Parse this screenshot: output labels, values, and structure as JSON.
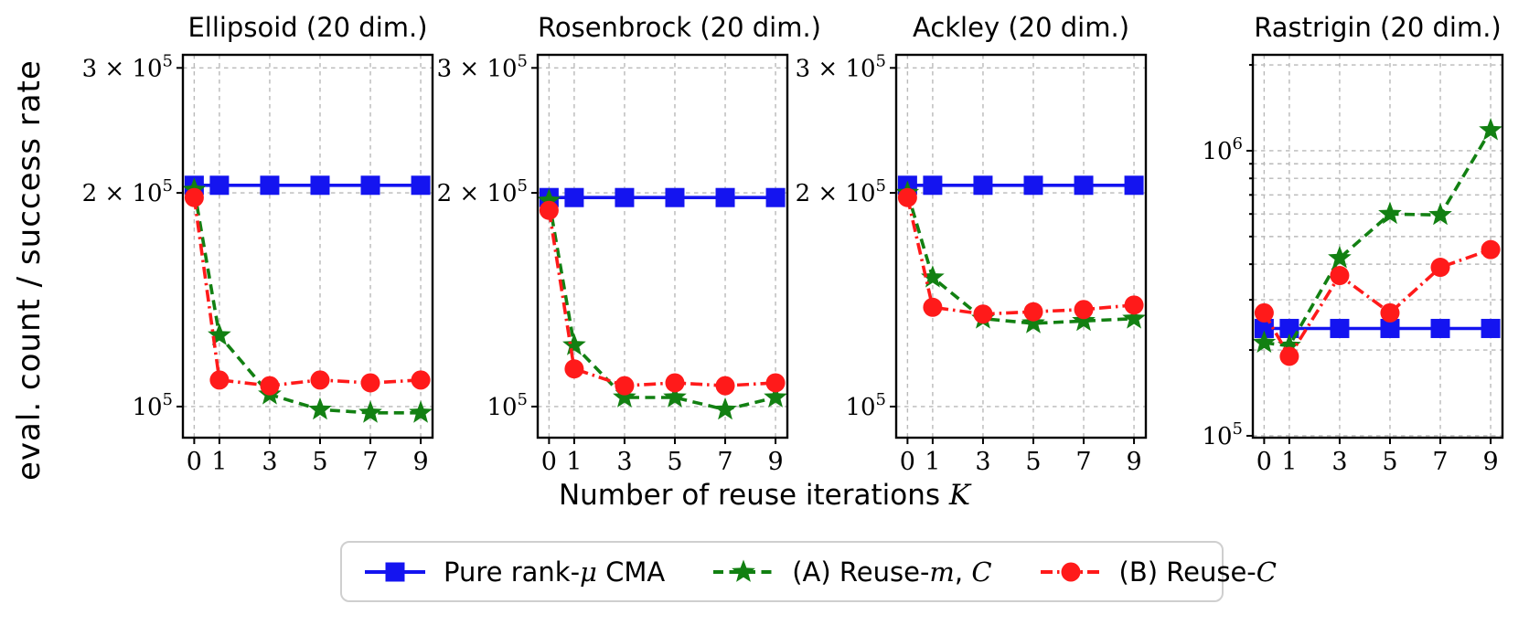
{
  "figure": {
    "ylabel": "eval. count / success rate",
    "xlabel_parts": [
      {
        "text": "Number of reuse iterations ",
        "italic": false
      },
      {
        "text": "K",
        "italic": true
      }
    ],
    "colors": {
      "blue": "#1414f0",
      "green": "#128012",
      "red": "#ff1a1a",
      "grid": "#b9b9b9",
      "axis": "#000000"
    }
  },
  "legend": {
    "items": [
      {
        "id": "pure-rank-mu-cma",
        "color": "blue",
        "line": "solid",
        "marker": "square",
        "parts": [
          {
            "text": "Pure rank-",
            "italic": false
          },
          {
            "text": "μ",
            "italic": true
          },
          {
            "text": " CMA",
            "italic": false
          }
        ]
      },
      {
        "id": "reuse-m-c",
        "color": "green",
        "line": "dashed",
        "marker": "star",
        "parts": [
          {
            "text": "(A) Reuse-",
            "italic": false
          },
          {
            "text": "m",
            "italic": true
          },
          {
            "text": ", ",
            "italic": false
          },
          {
            "text": "C",
            "italic": true
          }
        ]
      },
      {
        "id": "reuse-c",
        "color": "red",
        "line": "dashdot",
        "marker": "circle",
        "parts": [
          {
            "text": "(B) Reuse-",
            "italic": false
          },
          {
            "text": "C",
            "italic": true
          }
        ]
      }
    ]
  },
  "chart_data": [
    {
      "type": "line",
      "title": "Ellipsoid (20 dim.)",
      "x": [
        0,
        1,
        3,
        5,
        7,
        9
      ],
      "xticks": [
        0,
        1,
        3,
        5,
        7,
        9
      ],
      "xlim": [
        -0.45,
        9.47
      ],
      "ylog": true,
      "ylim": [
        90400,
        313000
      ],
      "yticks": [
        {
          "v": 100000,
          "label": "10^5"
        },
        {
          "v": 200000,
          "label": "2 × 10^5"
        },
        {
          "v": 300000,
          "label": "3 × 10^5"
        }
      ],
      "yticks_minor": [],
      "grid": true,
      "series": [
        {
          "name": "Pure rank-μ CMA",
          "color": "blue",
          "line": "solid",
          "marker": "square",
          "values": [
            205000,
            205000,
            205000,
            205000,
            205000,
            205000
          ]
        },
        {
          "name": "(A) Reuse-m,C",
          "color": "green",
          "line": "dashed",
          "marker": "star",
          "values": [
            202000,
            126000,
            104000,
            99000,
            98000,
            98000
          ]
        },
        {
          "name": "(B) Reuse-C",
          "color": "red",
          "line": "dashdot",
          "marker": "circle",
          "values": [
            197000,
            109000,
            107000,
            109000,
            108000,
            109000
          ]
        }
      ]
    },
    {
      "type": "line",
      "title": "Rosenbrock (20 dim.)",
      "x": [
        0,
        1,
        3,
        5,
        7,
        9
      ],
      "xticks": [
        0,
        1,
        3,
        5,
        7,
        9
      ],
      "xlim": [
        -0.45,
        9.47
      ],
      "ylog": true,
      "ylim": [
        90400,
        313000
      ],
      "yticks": [
        {
          "v": 100000,
          "label": "10^5"
        },
        {
          "v": 200000,
          "label": "2 × 10^5"
        },
        {
          "v": 300000,
          "label": "3 × 10^5"
        }
      ],
      "yticks_minor": [],
      "grid": true,
      "series": [
        {
          "name": "Pure rank-μ CMA",
          "color": "blue",
          "line": "solid",
          "marker": "square",
          "values": [
            197000,
            197000,
            197000,
            197000,
            197000,
            197000
          ]
        },
        {
          "name": "(A) Reuse-m,C",
          "color": "green",
          "line": "dashed",
          "marker": "star",
          "values": [
            195000,
            122000,
            103000,
            103000,
            99000,
            103000
          ]
        },
        {
          "name": "(B) Reuse-C",
          "color": "red",
          "line": "dashdot",
          "marker": "circle",
          "values": [
            189000,
            113000,
            107000,
            108000,
            107000,
            108000
          ]
        }
      ]
    },
    {
      "type": "line",
      "title": "Ackley (20 dim.)",
      "x": [
        0,
        1,
        3,
        5,
        7,
        9
      ],
      "xticks": [
        0,
        1,
        3,
        5,
        7,
        9
      ],
      "xlim": [
        -0.45,
        9.47
      ],
      "ylog": true,
      "ylim": [
        90400,
        313000
      ],
      "yticks": [
        {
          "v": 100000,
          "label": "10^5"
        },
        {
          "v": 200000,
          "label": "2 × 10^5"
        },
        {
          "v": 300000,
          "label": "3 × 10^5"
        }
      ],
      "yticks_minor": [],
      "grid": true,
      "series": [
        {
          "name": "Pure rank-μ CMA",
          "color": "blue",
          "line": "solid",
          "marker": "square",
          "values": [
            205000,
            205000,
            205000,
            205000,
            205000,
            205000
          ]
        },
        {
          "name": "(A) Reuse-m,C",
          "color": "green",
          "line": "dashed",
          "marker": "star",
          "values": [
            200000,
            152000,
            133000,
            131000,
            132000,
            133000
          ]
        },
        {
          "name": "(B) Reuse-C",
          "color": "red",
          "line": "dashdot",
          "marker": "circle",
          "values": [
            197000,
            138000,
            135000,
            136000,
            137000,
            139000
          ]
        }
      ]
    },
    {
      "type": "line",
      "title": "Rastrigin (20 dim.)",
      "x": [
        0,
        1,
        3,
        5,
        7,
        9
      ],
      "xticks": [
        0,
        1,
        3,
        5,
        7,
        9
      ],
      "xlim": [
        -0.45,
        9.47
      ],
      "ylog": true,
      "ylim": [
        98500,
        2170000
      ],
      "yticks": [
        {
          "v": 100000,
          "label": "10^5"
        },
        {
          "v": 1000000,
          "label": "10^6"
        }
      ],
      "yticks_minor": [
        200000,
        300000,
        400000,
        500000,
        600000,
        700000,
        800000,
        900000,
        2000000
      ],
      "grid": true,
      "series": [
        {
          "name": "Pure rank-μ CMA",
          "color": "blue",
          "line": "solid",
          "marker": "square",
          "values": [
            238000,
            238000,
            238000,
            238000,
            238000,
            238000
          ]
        },
        {
          "name": "(A) Reuse-m,C",
          "color": "green",
          "line": "dashed",
          "marker": "star",
          "values": [
            212000,
            207000,
            420000,
            600000,
            595000,
            1180000
          ]
        },
        {
          "name": "(B) Reuse-C",
          "color": "red",
          "line": "dashdot",
          "marker": "circle",
          "values": [
            270000,
            190000,
            365000,
            270000,
            390000,
            450000
          ]
        }
      ]
    }
  ]
}
